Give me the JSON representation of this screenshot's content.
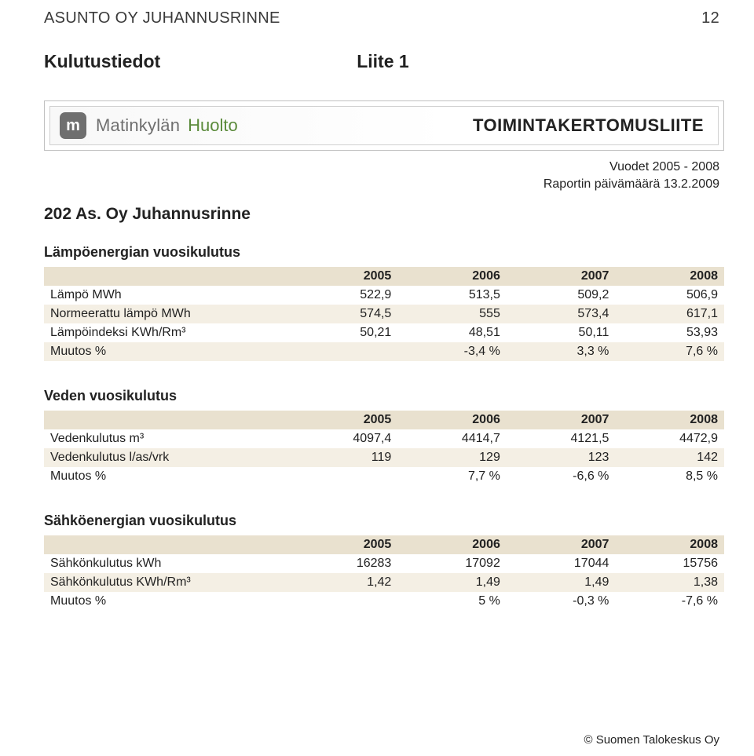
{
  "header": {
    "company_upper": "ASUNTO OY JUHANNUSRINNE",
    "page_number": "12"
  },
  "section": {
    "title": "Kulutustiedot",
    "attachment": "Liite 1"
  },
  "banner": {
    "logo_letter": "m",
    "brand_part1": "Matinkylän",
    "brand_part2": "Huolto",
    "right_title": "TOIMINTAKERTOMUSLIITE"
  },
  "meta": {
    "years": "Vuodet 2005 - 2008",
    "report_date": "Raportin päivämäärä 13.2.2009"
  },
  "company_line": "202  As. Oy Juhannusrinne",
  "tables": {
    "heat": {
      "title": "Lämpöenergian vuosikulutus",
      "years": [
        "2005",
        "2006",
        "2007",
        "2008"
      ],
      "rows": [
        {
          "label": "Lämpö MWh",
          "v": [
            "522,9",
            "513,5",
            "509,2",
            "506,9"
          ],
          "alt": false
        },
        {
          "label": "Normeerattu lämpö MWh",
          "v": [
            "574,5",
            "555",
            "573,4",
            "617,1"
          ],
          "alt": true
        },
        {
          "label": "Lämpöindeksi KWh/Rm³",
          "v": [
            "50,21",
            "48,51",
            "50,11",
            "53,93"
          ],
          "alt": false
        },
        {
          "label": "Muutos %",
          "v": [
            "",
            "-3,4 %",
            "3,3 %",
            "7,6 %"
          ],
          "alt": true
        }
      ]
    },
    "water": {
      "title": "Veden vuosikulutus",
      "years": [
        "2005",
        "2006",
        "2007",
        "2008"
      ],
      "rows": [
        {
          "label": "Vedenkulutus m³",
          "v": [
            "4097,4",
            "4414,7",
            "4121,5",
            "4472,9"
          ],
          "alt": false
        },
        {
          "label": "Vedenkulutus l/as/vrk",
          "v": [
            "119",
            "129",
            "123",
            "142"
          ],
          "alt": true
        },
        {
          "label": "Muutos %",
          "v": [
            "",
            "7,7 %",
            "-6,6 %",
            "8,5 %"
          ],
          "alt": false
        }
      ]
    },
    "electricity": {
      "title": "Sähköenergian vuosikulutus",
      "years": [
        "2005",
        "2006",
        "2007",
        "2008"
      ],
      "rows": [
        {
          "label": "Sähkönkulutus kWh",
          "v": [
            "16283",
            "17092",
            "17044",
            "15756"
          ],
          "alt": false
        },
        {
          "label": "Sähkönkulutus KWh/Rm³",
          "v": [
            "1,42",
            "1,49",
            "1,49",
            "1,38"
          ],
          "alt": true
        },
        {
          "label": "Muutos %",
          "v": [
            "",
            "5 %",
            "-0,3 %",
            "-7,6 %"
          ],
          "alt": false
        }
      ]
    }
  },
  "footer": "© Suomen Talokeskus Oy",
  "style": {
    "header_bg": "#e9e1cf",
    "row_alt_bg": "#f4efe4",
    "text_color": "#222222",
    "brand2_color": "#5a8a3a",
    "logo_bg": "#6f6f6f",
    "page_bg": "#ffffff",
    "fontsize_body": 16,
    "fontsize_title": 18,
    "fontsize_section": 23,
    "fontsize_header": 20
  }
}
